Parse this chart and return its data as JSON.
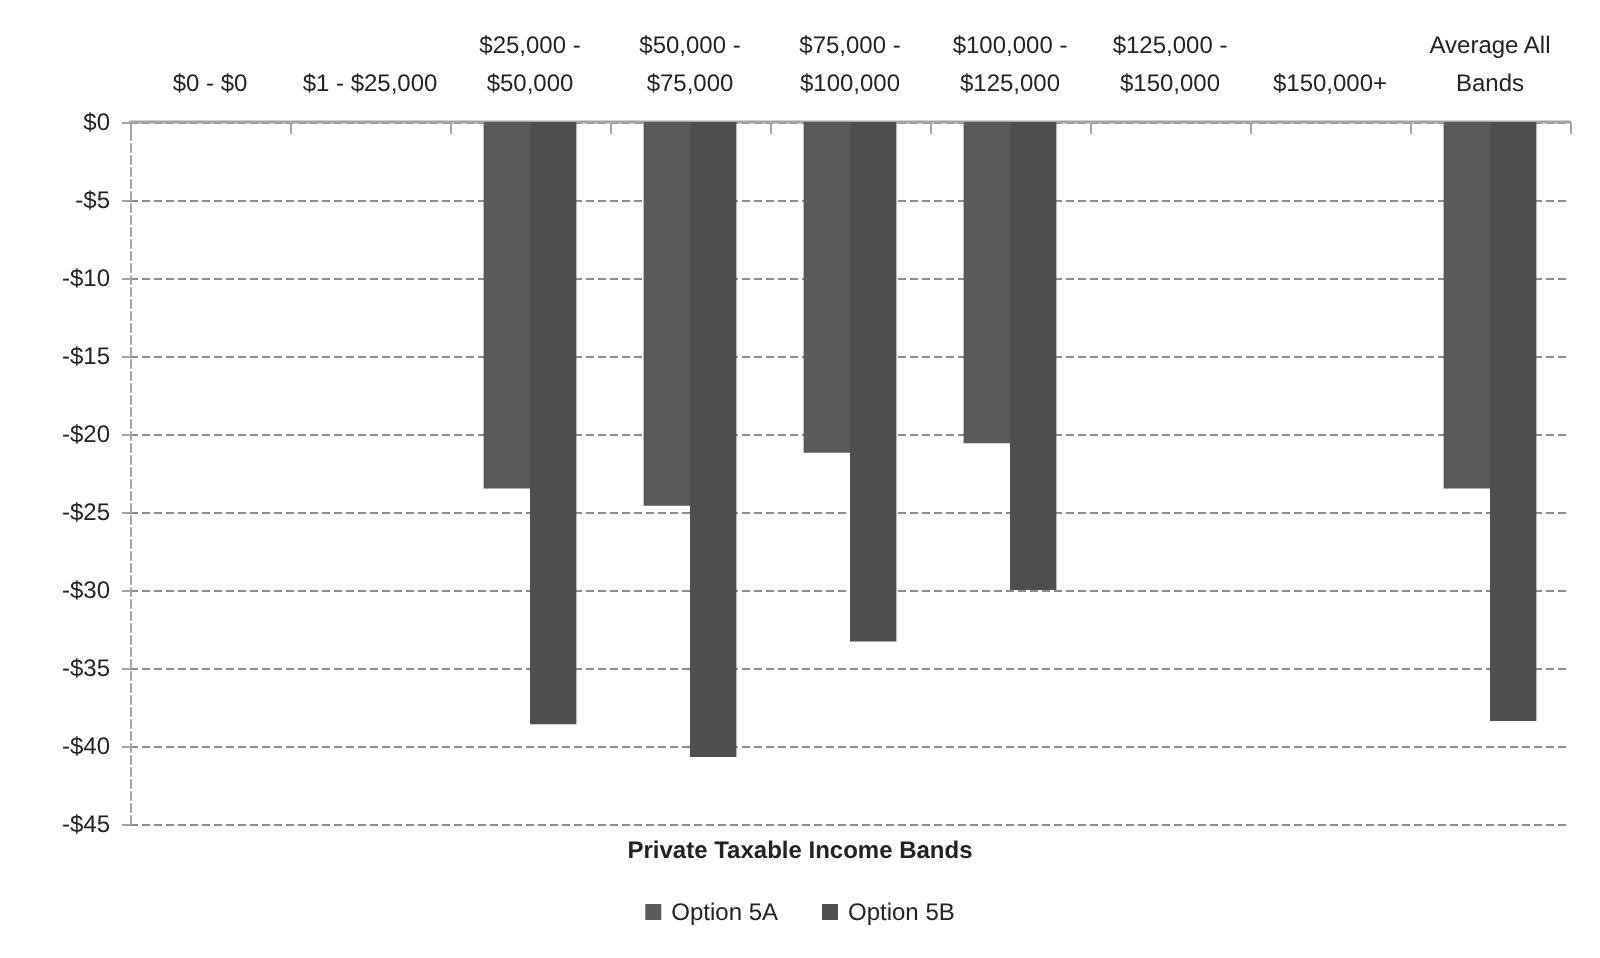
{
  "chart_data": {
    "type": "bar",
    "xlabel": "Private Taxable Income Bands",
    "categories": [
      "$0 - $0",
      "$1 - $25,000",
      "$25,000 - $50,000",
      "$50,000 - $75,000",
      "$75,000 - $100,000",
      "$100,000 - $125,000",
      "$125,000 - $150,000",
      "$150,000+",
      "Average All Bands"
    ],
    "series": [
      {
        "name": "Option 5A",
        "color": "#5a5a5a",
        "values": [
          null,
          null,
          -23.5,
          -24.6,
          -21.2,
          -20.6,
          null,
          null,
          -23.5
        ]
      },
      {
        "name": "Option 5B",
        "color": "#4e4e4e",
        "values": [
          null,
          null,
          -38.6,
          -40.7,
          -33.3,
          -30.0,
          null,
          null,
          -38.4
        ]
      }
    ],
    "ylim": [
      -45,
      0
    ],
    "yticks": [
      {
        "value": 0,
        "label": "$0"
      },
      {
        "value": -5,
        "label": "-$5"
      },
      {
        "value": -10,
        "label": "-$10"
      },
      {
        "value": -15,
        "label": "-$15"
      },
      {
        "value": -20,
        "label": "-$20"
      },
      {
        "value": -25,
        "label": "-$25"
      },
      {
        "value": -30,
        "label": "-$30"
      },
      {
        "value": -35,
        "label": "-$35"
      },
      {
        "value": -40,
        "label": "-$40"
      },
      {
        "value": -45,
        "label": "-$45"
      }
    ],
    "grid": "y",
    "legend": "bottom"
  }
}
